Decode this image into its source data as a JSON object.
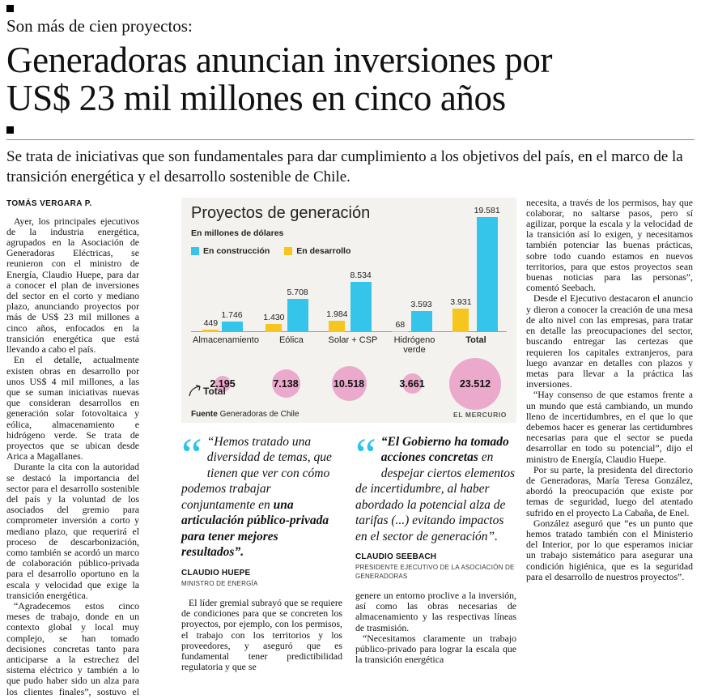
{
  "header": {
    "kicker": "Son más de cien proyectos:",
    "headline_line1": "Generadoras anuncian inversiones por",
    "headline_line2": "US$ 23 mil millones en cinco años",
    "deck": "Se trata de iniciativas que son fundamentales para dar cumplimiento a los objetivos del país, en el marco de la transición energética y el desarrollo sostenible de Chile.",
    "byline": "TOMÁS VERGARA P."
  },
  "article": {
    "left": [
      "Ayer, los principales ejecutivos de la industria energética, agrupados en la Asociación de Generadoras Eléctricas, se reunieron con el ministro de Energía, Claudio Huepe, para dar a conocer el plan de inversiones del sector en el corto y mediano plazo, anunciando proyectos por más de US$ 23 mil millones a cinco años, enfocados en la transición energética que está llevando a cabo el país.",
      "En el detalle, actualmente existen obras en desarrollo por unos US$ 4 mil millones, a las que se suman iniciativas nuevas que consideran desarrollos en generación solar fotovoltaica y eólica, almacenamiento e hidrógeno verde. Se trata de proyectos que se ubican desde Arica a Magallanes.",
      "Durante la cita con la autoridad se destacó la importancia del sector para el desarrollo sostenible del país y la voluntad de los asociados del gremio para comprometer inversión a corto y mediano plazo, que requerirá el proceso de descarbonización, como también se acordó un marco de colaboración público-privada para el desarrollo oportuno en la escala y velocidad que exige la transición energética.",
      "“Agradecemos estos cinco meses de trabajo, donde en un contexto global y local muy complejo, se han tomado decisiones concretas tanto para anticiparse a la estrechez del sistema eléctrico y también a lo que pudo haber sido un alza para los clientes finales”, sostuvo el presidente ejecutivo del gremio, Claudio Seebach."
    ],
    "mid1": [
      "El líder gremial subrayó que se requiere de condiciones para que se concreten los proyectos, por ejemplo, con los permisos, el trabajo con los territorios y los proveedores, y aseguró que es fundamental tener predictibilidad regulatoria y que se"
    ],
    "mid2": [
      "genere un entorno proclive a la inversión, así como las obras necesarias de almacenamiento y las respectivas líneas de trasmisión.",
      "“Necesitamos claramente un trabajo público-privado para lograr la escala que la transición energética"
    ],
    "right": [
      "necesita, a través de los permisos, hay que colaborar, no saltarse pasos, pero sí agilizar, porque la escala y la velocidad de la transición así lo exigen, y necesitamos también potenciar las buenas prácticas, sobre todo cuando estamos en nuevos territorios, para que estos proyectos sean buenas noticias para las personas”, comentó Seebach.",
      "Desde el Ejecutivo destacaron el anuncio y dieron a conocer la creación de una mesa de alto nivel con las empresas, para tratar en detalle las preocupaciones del sector, buscando entregar las certezas que requieren los capitales extranjeros, para luego avanzar en detalles con plazos y metas para llevar a la práctica las inversiones.",
      "“Hay consenso de que estamos frente a un mundo que está cambiando, un mundo lleno de incertidumbres, en el que lo que debemos hacer es generar las certidumbres necesarias para que el sector se pueda desarrollar en todo su potencial”, dijo el ministro de Energía, Claudio Huepe.",
      "Por su parte, la presidenta del directorio de Generadoras, María Teresa González, abordó la preocupación que existe por temas de seguridad, luego del atentado sufrido en el proyecto La Cabaña, de Enel.",
      "González aseguró que “es un punto que hemos tratado también con el Ministerio del Interior, por lo que esperamos iniciar un trabajo sistemático para asegurar una condición higiénica, que es la seguridad para el desarrollo de nuestros proyectos”."
    ]
  },
  "chart_data": {
    "type": "bar",
    "title": "Proyectos de generación",
    "subtitle": "En millones de dólares",
    "categories": [
      "Almacenamiento",
      "Eólica",
      "Solar + CSP",
      "Hidrógeno verde",
      "Total"
    ],
    "series": [
      {
        "name": "En desarrollo",
        "color": "#f6c51e",
        "values": [
          449,
          1430,
          1984,
          68,
          3931
        ],
        "labels": [
          "449",
          "1.430",
          "1.984",
          "68",
          "3.931"
        ]
      },
      {
        "name": "En construcción",
        "color": "#35c4ea",
        "values": [
          1746,
          5708,
          8534,
          3593,
          19581
        ],
        "labels": [
          "1.746",
          "5.708",
          "8.534",
          "3.593",
          "19.581"
        ]
      }
    ],
    "legend": [
      {
        "label": "En construcción",
        "color": "#35c4ea"
      },
      {
        "label": "En desarrollo",
        "color": "#f6c51e"
      }
    ],
    "totals": {
      "label": "Total",
      "color": "#eba9cc",
      "values": [
        2195,
        7138,
        10518,
        3661,
        23512
      ],
      "labels": [
        "2.195",
        "7.138",
        "10.518",
        "3.661",
        "23.512"
      ]
    },
    "ylim": [
      0,
      19581
    ],
    "source_label": "Fuente",
    "source": "Generadoras de Chile",
    "credit": "EL MERCURIO"
  },
  "quotes": [
    {
      "pre": "“Hemos tratado una diversidad de temas, que tienen que ver con cómo podemos trabajar conjuntamente en ",
      "strong": "una articulación público-privada para tener mejores resultados”.",
      "post": "",
      "name": "CLAUDIO HUEPE",
      "role": "MINISTRO DE ENERGÍA"
    },
    {
      "pre": "",
      "strong": "“El Gobierno ha tomado acciones concretas ",
      "post": "en despejar ciertos elementos de incertidumbre, al haber abordado la potencial alza de tarifas (...) evitando impactos en el sector de generación”.",
      "name": "CLAUDIO SEEBACH",
      "role": "PRESIDENTE EJECUTIVO DE LA ASOCIACIÓN DE GENERADORAS"
    }
  ]
}
